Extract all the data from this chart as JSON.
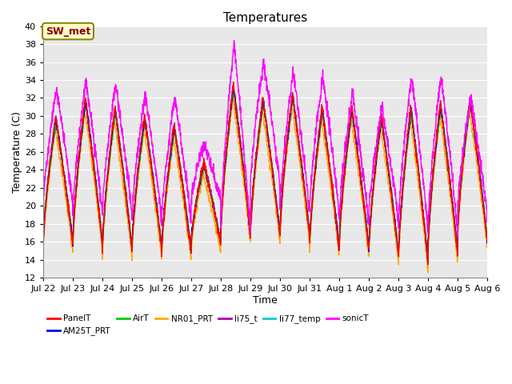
{
  "title": "Temperatures",
  "xlabel": "Time",
  "ylabel": "Temperature (C)",
  "ylim": [
    12,
    40
  ],
  "yticks": [
    12,
    14,
    16,
    18,
    20,
    22,
    24,
    26,
    28,
    30,
    32,
    34,
    36,
    38,
    40
  ],
  "xtick_labels": [
    "Jul 22",
    "Jul 23",
    "Jul 24",
    "Jul 25",
    "Jul 26",
    "Jul 27",
    "Jul 28",
    "Jul 29",
    "Jul 30",
    "Jul 31",
    "Aug 1",
    "Aug 2",
    "Aug 3",
    "Aug 4",
    "Aug 5",
    "Aug 6"
  ],
  "series": {
    "PanelT": {
      "color": "#ff0000",
      "lw": 1.0
    },
    "AM25T_PRT": {
      "color": "#0000ff",
      "lw": 1.0
    },
    "AirT": {
      "color": "#00cc00",
      "lw": 1.0
    },
    "NR01_PRT": {
      "color": "#ffaa00",
      "lw": 1.0
    },
    "li75_t": {
      "color": "#aa00aa",
      "lw": 1.0
    },
    "li77_temp": {
      "color": "#00cccc",
      "lw": 1.0
    },
    "sonicT": {
      "color": "#ff00ff",
      "lw": 1.0
    }
  },
  "annotation_text": "SW_met",
  "annotation_color": "#880000",
  "annotation_bg": "#ffffcc",
  "annotation_border": "#888800",
  "bg_color": "#e8e8e8",
  "grid_color": "#ffffff",
  "title_fontsize": 11,
  "label_fontsize": 9,
  "tick_fontsize": 8
}
